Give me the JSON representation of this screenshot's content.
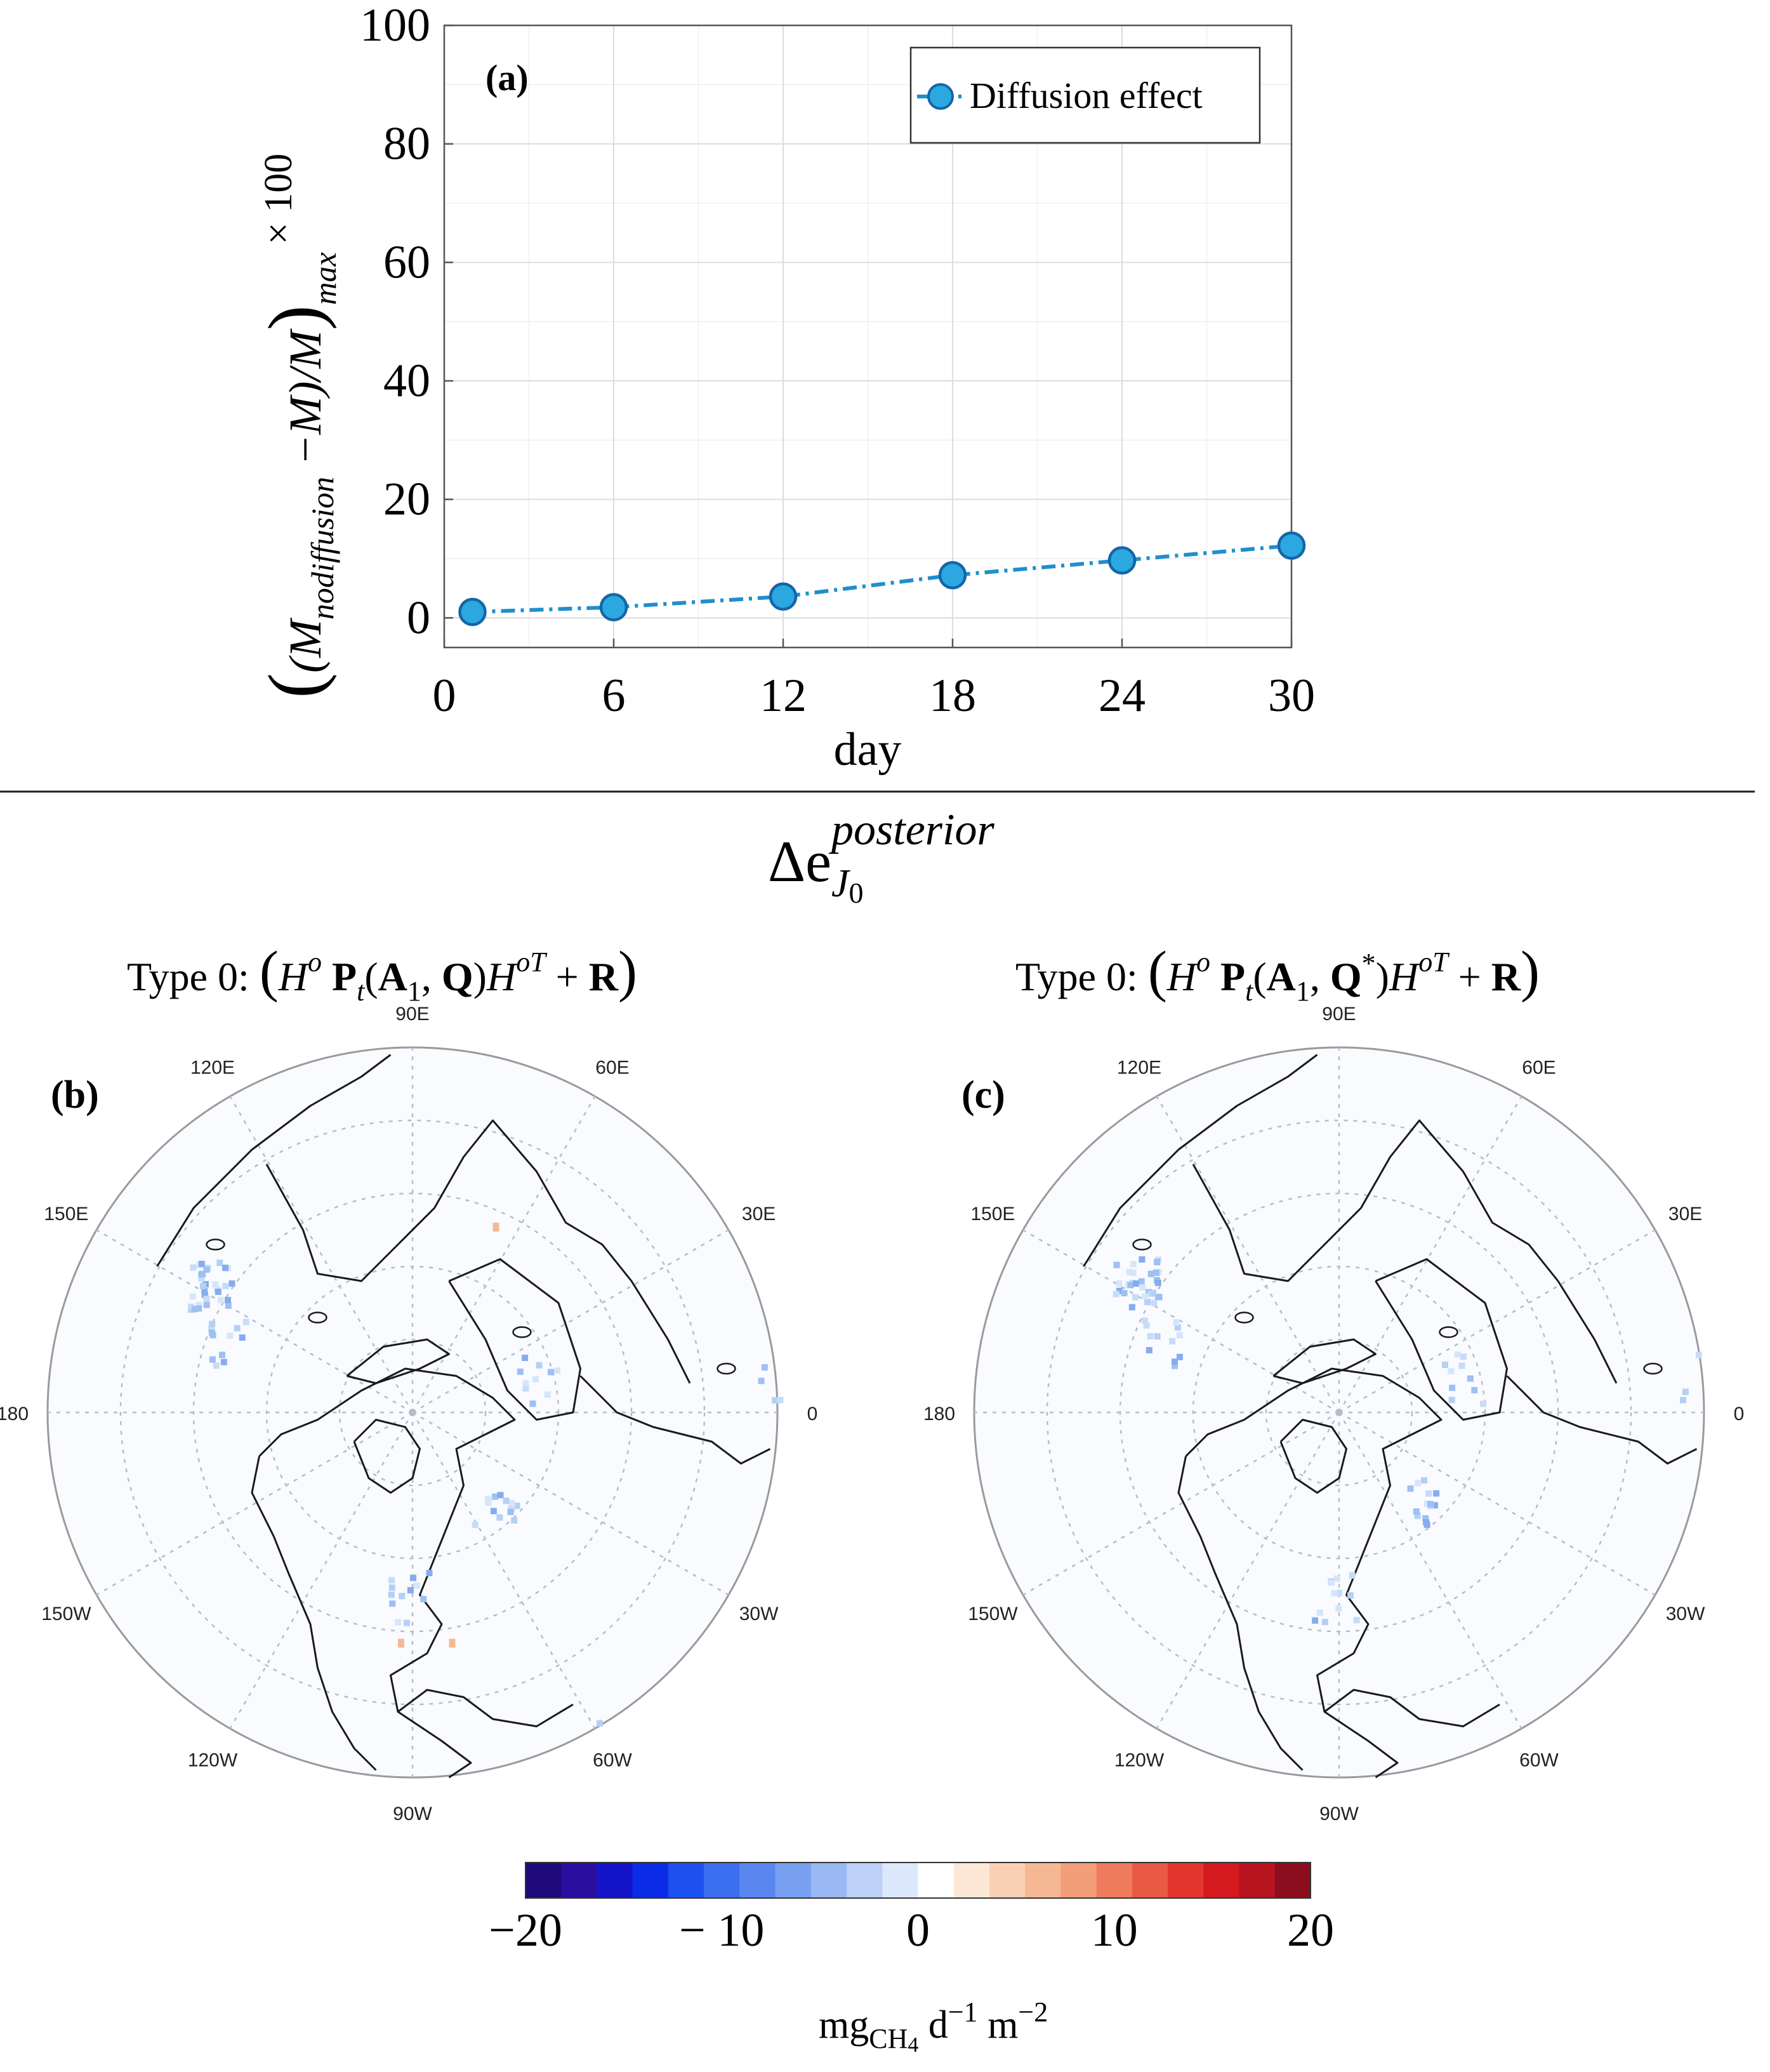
{
  "chart_data": [
    {
      "type": "line",
      "panel_label": "(a)",
      "x": [
        1,
        6,
        12,
        18,
        24,
        30
      ],
      "series": [
        {
          "name": "Diffusion effect",
          "values": [
            1.0,
            1.8,
            3.6,
            7.2,
            9.7,
            12.2
          ],
          "color": "#1f8fcc"
        }
      ],
      "xlabel": "day",
      "ylabel": "((M_nodiffusion − M)/M)_max × 100",
      "ylabel_parts": {
        "open": "(",
        "m1": "(M",
        "sub": "nodiffusion",
        "mid": " −M)/M",
        "close": ")",
        "max": "max",
        "times": "× 100"
      },
      "xlim": [
        0,
        30
      ],
      "ylim": [
        -5,
        100
      ],
      "xticks": [
        "0",
        "6",
        "12",
        "18",
        "24",
        "30"
      ],
      "yticks": [
        "0",
        "20",
        "40",
        "60",
        "80",
        "100"
      ],
      "grid": true,
      "legend_position": "top-right"
    },
    {
      "type": "heatmap",
      "projection": "north polar stereographic",
      "panel_label": "(b)",
      "subtitle": "Type 0: (H^o P_t(A_1, Q)H^oT + R)",
      "lon_labels": [
        "90E",
        "60E",
        "30E",
        "0",
        "30W",
        "60W",
        "90W",
        "120W",
        "150W",
        "180",
        "150E",
        "120E"
      ]
    },
    {
      "type": "heatmap",
      "projection": "north polar stereographic",
      "panel_label": "(c)",
      "subtitle": "Type 0: (H^o P_t(A_1, Q*)H^oT + R)",
      "lon_labels": [
        "90E",
        "60E",
        "30E",
        "0",
        "30W",
        "60W",
        "90W",
        "120W",
        "150W",
        "180",
        "150E",
        "120E"
      ]
    }
  ],
  "title": {
    "main": "Δe",
    "sup": "posterior",
    "sub": "J",
    "sub2": "0"
  },
  "subtitles": {
    "left": {
      "pre": "Type 0: ",
      "q": "Q",
      "qstar": ""
    },
    "right": {
      "pre": "Type 0: ",
      "q": "Q",
      "qstar": "*"
    }
  },
  "colorbar": {
    "ticks": [
      "−20",
      "− 10",
      "0",
      "10",
      "20"
    ],
    "range": [
      -20,
      20
    ],
    "label_pre": "mg",
    "label_sub": "CH",
    "label_sub2": "4",
    "label_post": " d",
    "label_exp1": "−1",
    "label_m": " m",
    "label_exp2": "−2",
    "colors": [
      "#1e0a78",
      "#2a0ea0",
      "#1414c8",
      "#0a2ce6",
      "#1e50f0",
      "#3c6ef0",
      "#5a86f0",
      "#78a0f0",
      "#9ab8f4",
      "#bcd0f8",
      "#dde8fc",
      "#ffffff",
      "#fde8d8",
      "#fad0b4",
      "#f6b894",
      "#f29e78",
      "#ee7c5c",
      "#e85a44",
      "#e2362c",
      "#d41a1e",
      "#b81420",
      "#8c0e1e"
    ]
  },
  "colors": {
    "series": "#1f8fcc",
    "marker_edge": "#1565a8",
    "grid": "#dcdcdc"
  }
}
